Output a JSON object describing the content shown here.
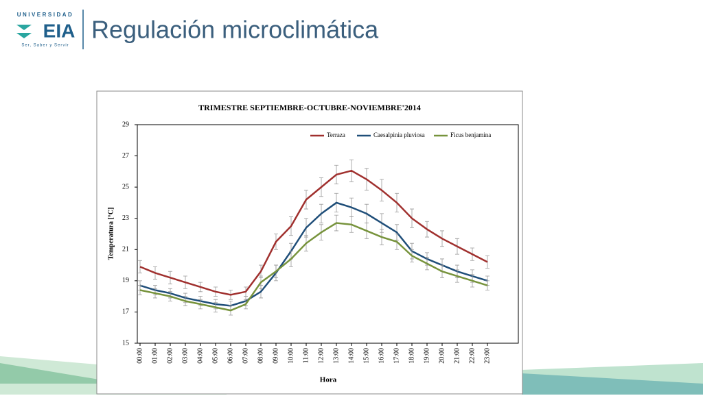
{
  "header": {
    "logo_top": "UNIVERSIDAD",
    "logo_main": "EIA",
    "logo_motto": "Ser, Saber y Servir",
    "title": "Regulación microclimática"
  },
  "chart_data": {
    "type": "line",
    "title": "TRIMESTRE SEPTIEMBRE-OCTUBRE-NOVIEMBRE'2014",
    "x_label": "Hora",
    "y_label": "Temperatura [°C]",
    "categories": [
      "00:00",
      "01:00",
      "02:00",
      "03:00",
      "04:00",
      "05:00",
      "06:00",
      "07:00",
      "08:00",
      "09:00",
      "10:00",
      "11:00",
      "12:00",
      "13:00",
      "14:00",
      "15:00",
      "16:00",
      "17:00",
      "18:00",
      "19:00",
      "20:00",
      "21:00",
      "22:00",
      "23:00"
    ],
    "ylim": [
      15,
      29
    ],
    "yticks": [
      15,
      17,
      19,
      21,
      23,
      25,
      27,
      29
    ],
    "grid": false,
    "legend": "top-right",
    "series": [
      {
        "name": "Terraza",
        "color": "#a0302e",
        "values": [
          19.9,
          19.5,
          19.2,
          18.9,
          18.6,
          18.3,
          18.1,
          18.3,
          19.6,
          21.5,
          22.5,
          24.2,
          25.0,
          25.8,
          26.05,
          25.5,
          24.8,
          24.0,
          23.0,
          22.3,
          21.7,
          21.2,
          20.7,
          20.2
        ],
        "errors": [
          0.4,
          0.4,
          0.4,
          0.4,
          0.3,
          0.3,
          0.3,
          0.3,
          0.4,
          0.5,
          0.6,
          0.6,
          0.6,
          0.6,
          0.7,
          0.7,
          0.7,
          0.6,
          0.6,
          0.5,
          0.5,
          0.5,
          0.4,
          0.4
        ]
      },
      {
        "name": "Caesalpinia pluviosa",
        "color": "#1f4e79",
        "values": [
          18.7,
          18.4,
          18.2,
          17.9,
          17.7,
          17.5,
          17.4,
          17.7,
          18.3,
          19.5,
          20.9,
          22.4,
          23.3,
          24.0,
          23.7,
          23.3,
          22.7,
          22.1,
          20.9,
          20.4,
          20.0,
          19.6,
          19.3,
          19.0
        ],
        "errors": [
          0.3,
          0.3,
          0.3,
          0.3,
          0.3,
          0.3,
          0.3,
          0.3,
          0.4,
          0.5,
          0.5,
          0.6,
          0.6,
          0.6,
          0.6,
          0.6,
          0.6,
          0.5,
          0.5,
          0.4,
          0.4,
          0.4,
          0.4,
          0.3
        ]
      },
      {
        "name": "Ficus benjamina",
        "color": "#77933c",
        "values": [
          18.4,
          18.2,
          18.0,
          17.7,
          17.5,
          17.3,
          17.1,
          17.5,
          18.9,
          19.6,
          20.4,
          21.4,
          22.1,
          22.7,
          22.6,
          22.2,
          21.8,
          21.5,
          20.6,
          20.1,
          19.6,
          19.3,
          19.0,
          18.7
        ],
        "errors": [
          0.3,
          0.3,
          0.3,
          0.3,
          0.3,
          0.3,
          0.3,
          0.3,
          0.4,
          0.4,
          0.5,
          0.5,
          0.5,
          0.5,
          0.5,
          0.5,
          0.5,
          0.5,
          0.4,
          0.4,
          0.4,
          0.4,
          0.4,
          0.3
        ]
      }
    ]
  }
}
